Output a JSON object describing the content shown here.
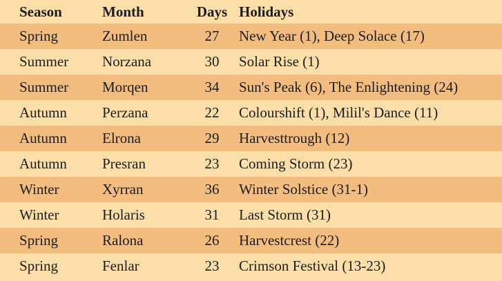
{
  "table": {
    "headers": {
      "season": "Season",
      "month": "Month",
      "days": "Days",
      "holidays": "Holidays"
    },
    "rows": [
      {
        "season": "Spring",
        "month": "Zumlen",
        "days": "27",
        "holidays": "New Year (1), Deep Solace (17)"
      },
      {
        "season": "Summer",
        "month": "Norzana",
        "days": "30",
        "holidays": "Solar Rise (1)"
      },
      {
        "season": "Summer",
        "month": "Morqen",
        "days": "34",
        "holidays": "Sun's Peak (6), The Enlightening (24)"
      },
      {
        "season": "Autumn",
        "month": "Perzana",
        "days": "22",
        "holidays": "Colourshift (1), Milil's Dance (11)"
      },
      {
        "season": "Autumn",
        "month": "Elrona",
        "days": "29",
        "holidays": "Harvesttrough (12)"
      },
      {
        "season": "Autumn",
        "month": "Presran",
        "days": "23",
        "holidays": "Coming Storm (23)"
      },
      {
        "season": "Winter",
        "month": "Xyrran",
        "days": "36",
        "holidays": "Winter Solstice (31-1)"
      },
      {
        "season": "Winter",
        "month": "Holaris",
        "days": "31",
        "holidays": "Last Storm (31)"
      },
      {
        "season": "Spring",
        "month": "Ralona",
        "days": "26",
        "holidays": "Harvestcrest (22)"
      },
      {
        "season": "Spring",
        "month": "Fenlar",
        "days": "23",
        "holidays": "Crimson Festival (13-23)"
      }
    ]
  },
  "colors": {
    "background": "#fbdea8",
    "stripe": "#f3bd80",
    "text": "#1c1c1c"
  }
}
